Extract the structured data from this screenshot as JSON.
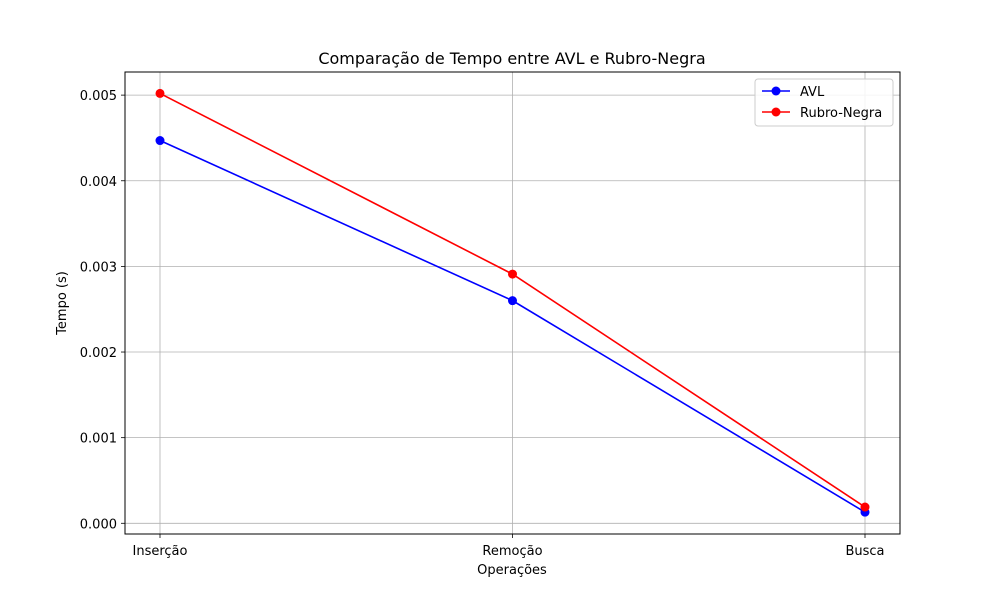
{
  "chart_data": {
    "type": "line",
    "title": "Comparação de Tempo entre AVL e Rubro-Negra",
    "xlabel": "Operações",
    "ylabel": "Tempo (s)",
    "categories": [
      "Inserção",
      "Remoção",
      "Busca"
    ],
    "ylim": [
      -0.000125,
      0.00527
    ],
    "yticks": [
      "0.000",
      "0.001",
      "0.002",
      "0.003",
      "0.004",
      "0.005"
    ],
    "grid": true,
    "legend_position": "top-right",
    "series": [
      {
        "name": "AVL",
        "values": [
          0.00447,
          0.0026,
          0.00013
        ],
        "color": "#0000ff"
      },
      {
        "name": "Rubro-Negra",
        "values": [
          0.00502,
          0.00291,
          0.00019
        ],
        "color": "#ff0000"
      }
    ]
  }
}
